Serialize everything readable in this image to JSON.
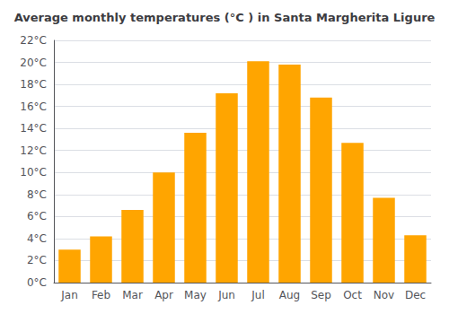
{
  "chart_data": {
    "type": "bar",
    "title": "Average monthly temperatures (°C ) in Santa Margherita Ligure",
    "categories": [
      "Jan",
      "Feb",
      "Mar",
      "Apr",
      "May",
      "Jun",
      "Jul",
      "Aug",
      "Sep",
      "Oct",
      "Nov",
      "Dec"
    ],
    "values": [
      3.0,
      4.2,
      6.6,
      10.0,
      13.6,
      17.2,
      20.1,
      19.8,
      16.8,
      12.7,
      7.7,
      4.3
    ],
    "color": "#FFA500",
    "ylim": [
      0,
      22
    ],
    "yticks": [
      {
        "value": 0,
        "label": "0°C"
      },
      {
        "value": 2,
        "label": "2°C"
      },
      {
        "value": 4,
        "label": "4°C"
      },
      {
        "value": 6,
        "label": "6°C"
      },
      {
        "value": 8,
        "label": "8°C"
      },
      {
        "value": 10,
        "label": "10°C"
      },
      {
        "value": 12,
        "label": "12°C"
      },
      {
        "value": 14,
        "label": "14°C"
      },
      {
        "value": 16,
        "label": "16°C"
      },
      {
        "value": 18,
        "label": "18°C"
      },
      {
        "value": 20,
        "label": "20°C"
      },
      {
        "value": 22,
        "label": "22°C"
      }
    ],
    "grid": true
  }
}
